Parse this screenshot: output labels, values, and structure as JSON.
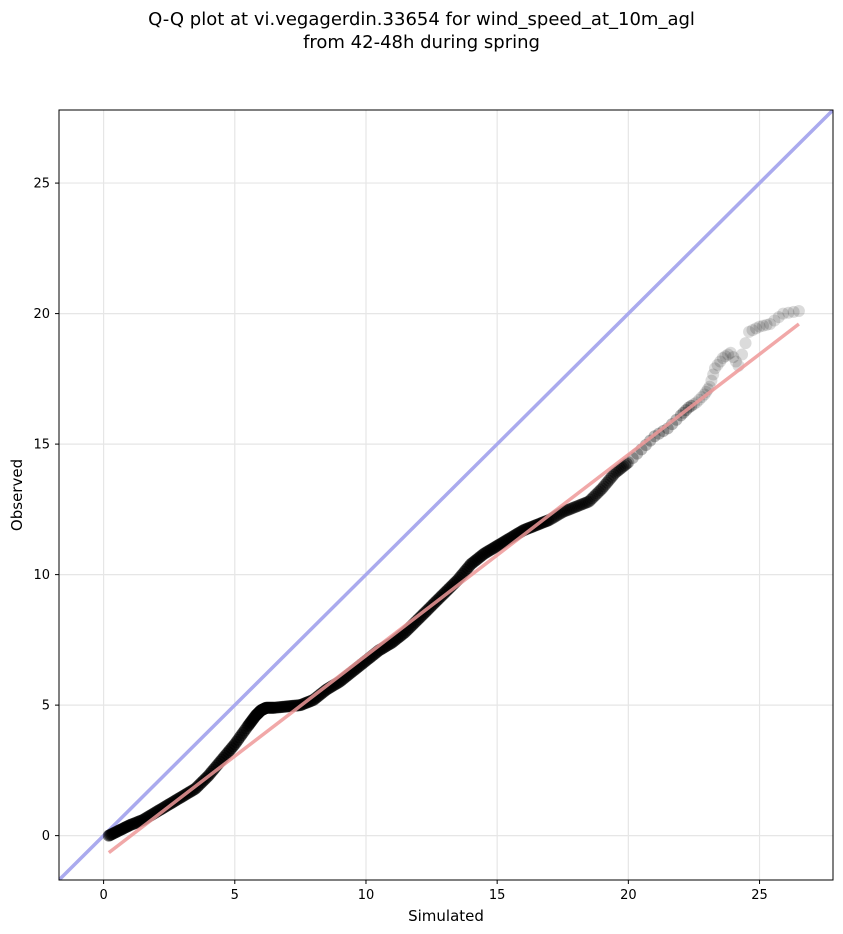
{
  "chart_data": {
    "type": "scatter",
    "title": "Q-Q plot at vi.vegagerdin.33654 for wind_speed_at_10m_agl",
    "subtitle": "from 42-48h during spring",
    "xlabel": "Simulated",
    "ylabel": "Observed",
    "xlim": [
      -1.7,
      27.8
    ],
    "ylim": [
      -1.7,
      27.8
    ],
    "xticks": [
      0,
      5,
      10,
      15,
      20,
      25
    ],
    "yticks": [
      0,
      5,
      10,
      15,
      20,
      25
    ],
    "grid": true,
    "colors": {
      "points": "#000000",
      "identity_line": "#aaaaee",
      "fit_line": "#ee9999"
    },
    "identity_line": {
      "x": [
        -1.7,
        27.8
      ],
      "y": [
        -1.7,
        27.8
      ]
    },
    "fit_line": {
      "x": [
        0.2,
        26.5
      ],
      "y": [
        -0.65,
        19.6
      ]
    },
    "quantiles": {
      "x": [
        0.2,
        0.6,
        1.0,
        1.5,
        2.0,
        2.5,
        3.0,
        3.5,
        4.0,
        4.5,
        5.0,
        5.5,
        5.8,
        6.0,
        6.2,
        6.5,
        7.0,
        7.5,
        8.0,
        8.5,
        9.0,
        9.5,
        10.0,
        10.5,
        11.0,
        11.5,
        12.0,
        12.5,
        13.0,
        13.5,
        14.0,
        14.5,
        15.0,
        15.5,
        16.0,
        16.5,
        17.0,
        17.5,
        18.0,
        18.5,
        19.0,
        19.5,
        20.0,
        20.5,
        21.0,
        21.5,
        22.0,
        22.3,
        22.6,
        22.9,
        23.1,
        23.3,
        23.6,
        23.9,
        24.2,
        24.6,
        25.0,
        25.4,
        25.9,
        26.5
      ],
      "y": [
        0.0,
        0.2,
        0.4,
        0.6,
        0.9,
        1.2,
        1.5,
        1.8,
        2.3,
        2.9,
        3.5,
        4.2,
        4.6,
        4.8,
        4.9,
        4.9,
        4.95,
        5.0,
        5.2,
        5.6,
        5.9,
        6.3,
        6.7,
        7.1,
        7.4,
        7.8,
        8.3,
        8.8,
        9.3,
        9.8,
        10.4,
        10.8,
        11.1,
        11.4,
        11.7,
        11.9,
        12.1,
        12.4,
        12.6,
        12.8,
        13.3,
        13.9,
        14.3,
        14.8,
        15.3,
        15.6,
        16.1,
        16.4,
        16.6,
        16.9,
        17.2,
        17.9,
        18.3,
        18.5,
        18.0,
        19.3,
        19.5,
        19.6,
        20.0,
        20.1
      ]
    }
  }
}
